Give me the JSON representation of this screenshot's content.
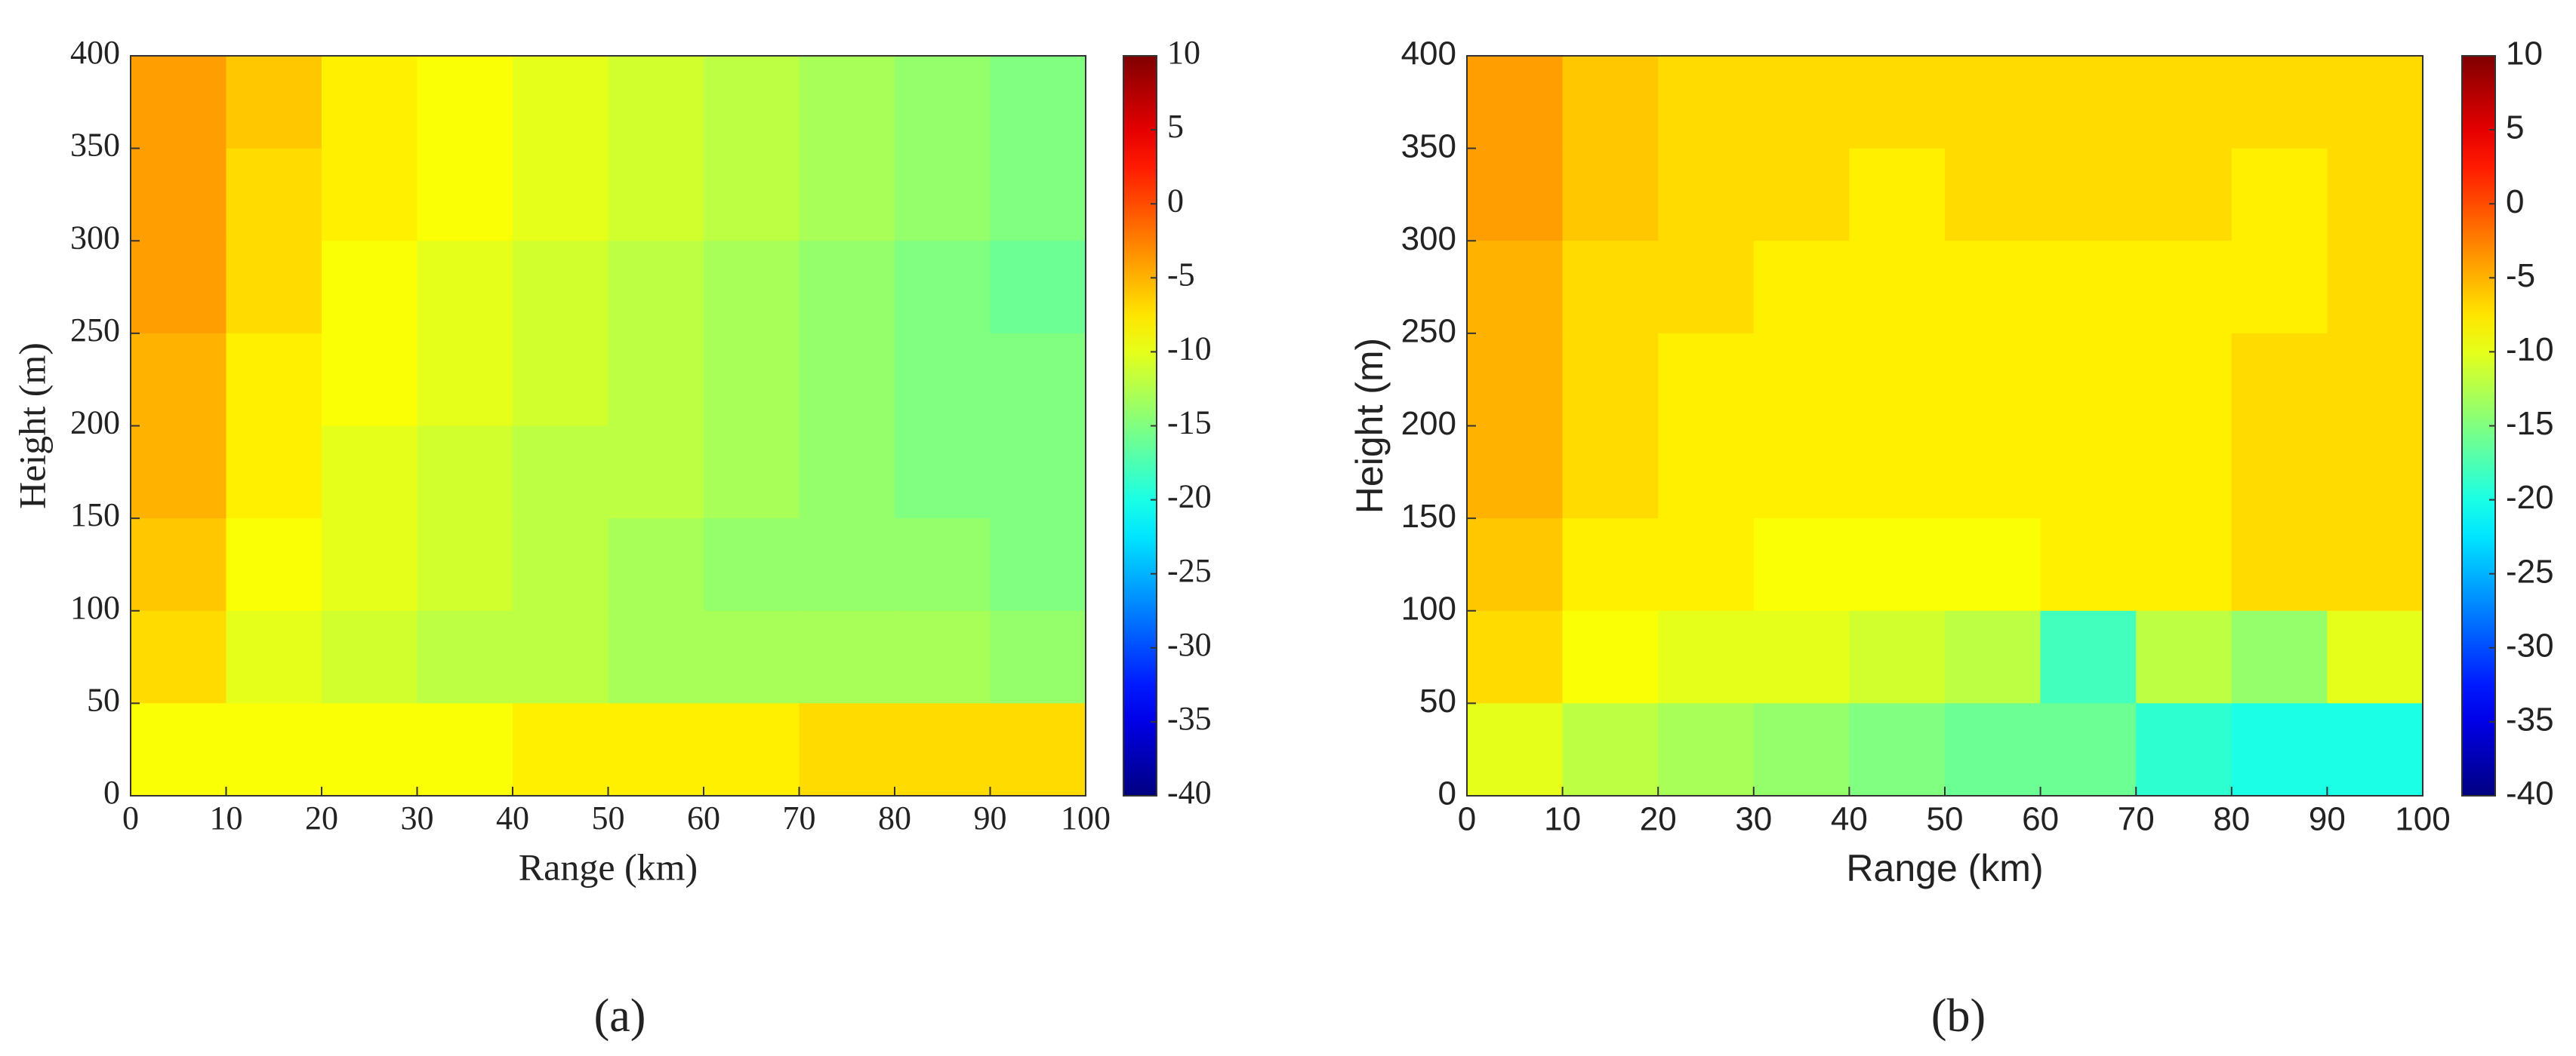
{
  "chart_data": [
    {
      "type": "heatmap",
      "caption": "(a)",
      "xlabel": "Range (km)",
      "ylabel": "Height (m)",
      "font": "serif",
      "x": [
        5,
        15,
        25,
        35,
        45,
        55,
        65,
        75,
        85,
        95
      ],
      "y": [
        375,
        325,
        275,
        225,
        175,
        125,
        75,
        25
      ],
      "z": [
        [
          -4,
          -6,
          -8,
          -9,
          -10,
          -11,
          -12,
          -13,
          -14,
          -15
        ],
        [
          -4,
          -7,
          -8,
          -9,
          -10,
          -11,
          -12,
          -13,
          -14,
          -15
        ],
        [
          -4,
          -7,
          -9,
          -10,
          -11,
          -12,
          -13,
          -14,
          -15,
          -16
        ],
        [
          -5,
          -8,
          -9,
          -10,
          -11,
          -12,
          -13,
          -14,
          -15,
          -15
        ],
        [
          -5,
          -8,
          -10,
          -11,
          -12,
          -12,
          -13,
          -14,
          -15,
          -15
        ],
        [
          -6,
          -9,
          -10,
          -11,
          -12,
          -13,
          -14,
          -14,
          -14,
          -15
        ],
        [
          -7,
          -10,
          -11,
          -12,
          -12,
          -13,
          -13,
          -13,
          -13,
          -14
        ],
        [
          -9,
          -9,
          -9,
          -9,
          -8,
          -8,
          -8,
          -7,
          -7,
          -7
        ]
      ],
      "xlim": [
        0,
        100
      ],
      "ylim": [
        0,
        400
      ],
      "zlim": [
        -40,
        10
      ],
      "colormap": "jet",
      "xticks": [
        0,
        10,
        20,
        30,
        40,
        50,
        60,
        70,
        80,
        90,
        100
      ],
      "yticks": [
        0,
        50,
        100,
        150,
        200,
        250,
        300,
        350,
        400
      ],
      "zticks": [
        -40,
        -35,
        -30,
        -25,
        -20,
        -15,
        -10,
        -5,
        0,
        5,
        10
      ]
    },
    {
      "type": "heatmap",
      "caption": "(b)",
      "xlabel": "Range (km)",
      "ylabel": "Height (m)",
      "font": "sans",
      "x": [
        5,
        15,
        25,
        35,
        45,
        55,
        65,
        75,
        85,
        95
      ],
      "y": [
        375,
        325,
        275,
        225,
        175,
        125,
        75,
        25
      ],
      "z": [
        [
          -4,
          -6,
          -7,
          -7,
          -7,
          -7,
          -7,
          -7,
          -7,
          -7
        ],
        [
          -4,
          -6,
          -7,
          -7,
          -8,
          -7,
          -7,
          -7,
          -8,
          -7
        ],
        [
          -5,
          -7,
          -7,
          -8,
          -8,
          -8,
          -8,
          -8,
          -8,
          -7
        ],
        [
          -5,
          -7,
          -8,
          -8,
          -8,
          -8,
          -8,
          -8,
          -7,
          -7
        ],
        [
          -5,
          -7,
          -8,
          -8,
          -8,
          -8,
          -8,
          -8,
          -7,
          -7
        ],
        [
          -6,
          -8,
          -8,
          -9,
          -9,
          -9,
          -8,
          -8,
          -7,
          -7
        ],
        [
          -7,
          -9,
          -10,
          -10,
          -11,
          -12,
          -18,
          -12,
          -14,
          -10
        ],
        [
          -10,
          -12,
          -13,
          -14,
          -15,
          -16,
          -16,
          -19,
          -20,
          -20
        ]
      ],
      "xlim": [
        0,
        100
      ],
      "ylim": [
        0,
        400
      ],
      "zlim": [
        -40,
        10
      ],
      "colormap": "jet",
      "xticks": [
        0,
        10,
        20,
        30,
        40,
        50,
        60,
        70,
        80,
        90,
        100
      ],
      "yticks": [
        0,
        50,
        100,
        150,
        200,
        250,
        300,
        350,
        400
      ],
      "zticks": [
        -40,
        -35,
        -30,
        -25,
        -20,
        -15,
        -10,
        -5,
        0,
        5,
        10
      ]
    }
  ]
}
